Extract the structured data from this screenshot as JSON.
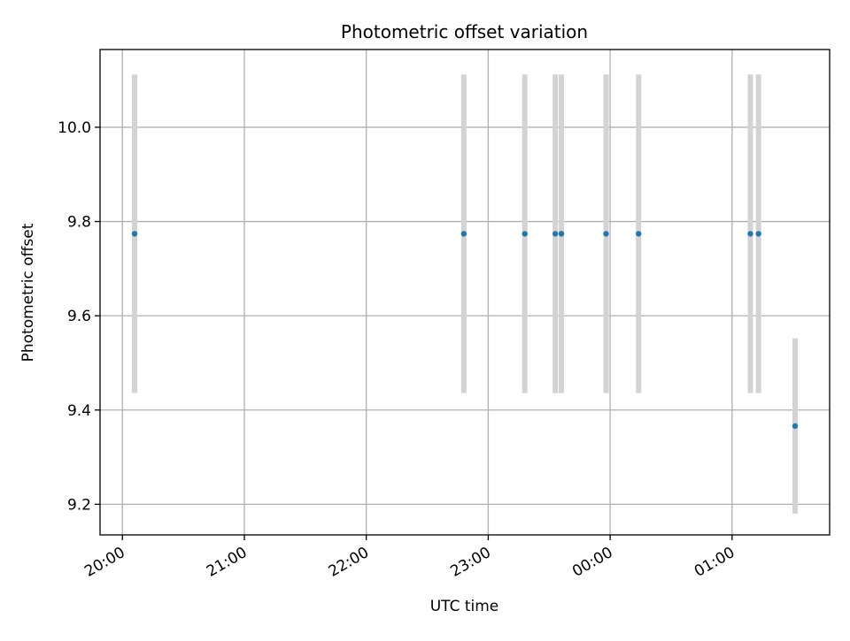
{
  "chart_data": {
    "type": "scatter",
    "title": "Photometric offset variation",
    "xlabel": "UTC time",
    "ylabel": "Photometric offset",
    "x_tick_labels": [
      "20:00",
      "21:00",
      "22:00",
      "23:00",
      "00:00",
      "01:00"
    ],
    "x_ticks": [
      "20:00",
      "21:00",
      "22:00",
      "23:00",
      "24:00",
      "25:00"
    ],
    "xlim": [
      "19:49",
      "25:48"
    ],
    "y_ticks": [
      9.2,
      9.4,
      9.6,
      9.8,
      10.0
    ],
    "y_tick_labels": [
      "9.2",
      "9.4",
      "9.6",
      "9.8",
      "10.0"
    ],
    "ylim": [
      9.135,
      10.165
    ],
    "grid": true,
    "series": [
      {
        "marker_color": "#1f77b4",
        "errorbar_color": "#d3d3d3",
        "points": [
          {
            "x": "20:06",
            "y": 9.774,
            "err": 0.338
          },
          {
            "x": "22:48",
            "y": 9.774,
            "err": 0.338
          },
          {
            "x": "23:18",
            "y": 9.774,
            "err": 0.338
          },
          {
            "x": "23:33",
            "y": 9.774,
            "err": 0.338
          },
          {
            "x": "23:36",
            "y": 9.774,
            "err": 0.338
          },
          {
            "x": "23:58",
            "y": 9.774,
            "err": 0.338
          },
          {
            "x": "24:14",
            "y": 9.774,
            "err": 0.338
          },
          {
            "x": "25:09",
            "y": 9.774,
            "err": 0.338
          },
          {
            "x": "25:13",
            "y": 9.774,
            "err": 0.338
          },
          {
            "x": "25:31",
            "y": 9.366,
            "err": 0.186
          }
        ]
      }
    ]
  }
}
